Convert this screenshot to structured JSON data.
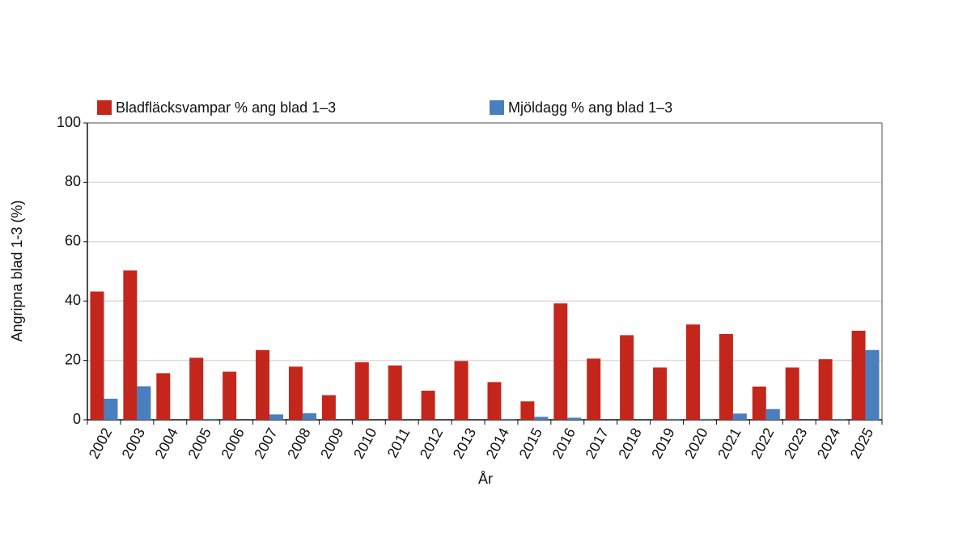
{
  "chart_data": {
    "type": "bar",
    "y_label": "Angripna blad 1-3 (%)",
    "x_label": "År",
    "categories": [
      "2002",
      "2003",
      "2004",
      "2005",
      "2006",
      "2007",
      "2008",
      "2009",
      "2010",
      "2011",
      "2012",
      "2013",
      "2014",
      "2015",
      "2016",
      "2017",
      "2018",
      "2019",
      "2020",
      "2021",
      "2022",
      "2023",
      "2024",
      "2025"
    ],
    "series": [
      {
        "name": "Bladfläcksvampar % ang blad 1–3",
        "color": "#c4261b",
        "values": [
          43.2,
          50.3,
          15.7,
          20.9,
          16.2,
          23.5,
          17.9,
          8.3,
          19.4,
          18.3,
          9.8,
          19.8,
          12.7,
          6.2,
          39.2,
          20.6,
          28.5,
          17.6,
          32.1,
          28.9,
          11.2,
          17.6,
          20.4,
          30.0
        ]
      },
      {
        "name": "Mjöldagg % ang blad 1–3",
        "color": "#4a7ebf",
        "values": [
          7.1,
          11.3,
          0,
          0.3,
          0,
          1.8,
          2.2,
          0,
          0,
          0,
          0,
          0,
          0.3,
          1.0,
          0.7,
          0,
          0,
          0.3,
          0.3,
          2.1,
          3.6,
          0,
          0.3,
          23.5
        ]
      }
    ],
    "ylim": [
      0,
      100
    ],
    "yticks": [
      0,
      20,
      40,
      60,
      80,
      100
    ],
    "grid": true
  }
}
